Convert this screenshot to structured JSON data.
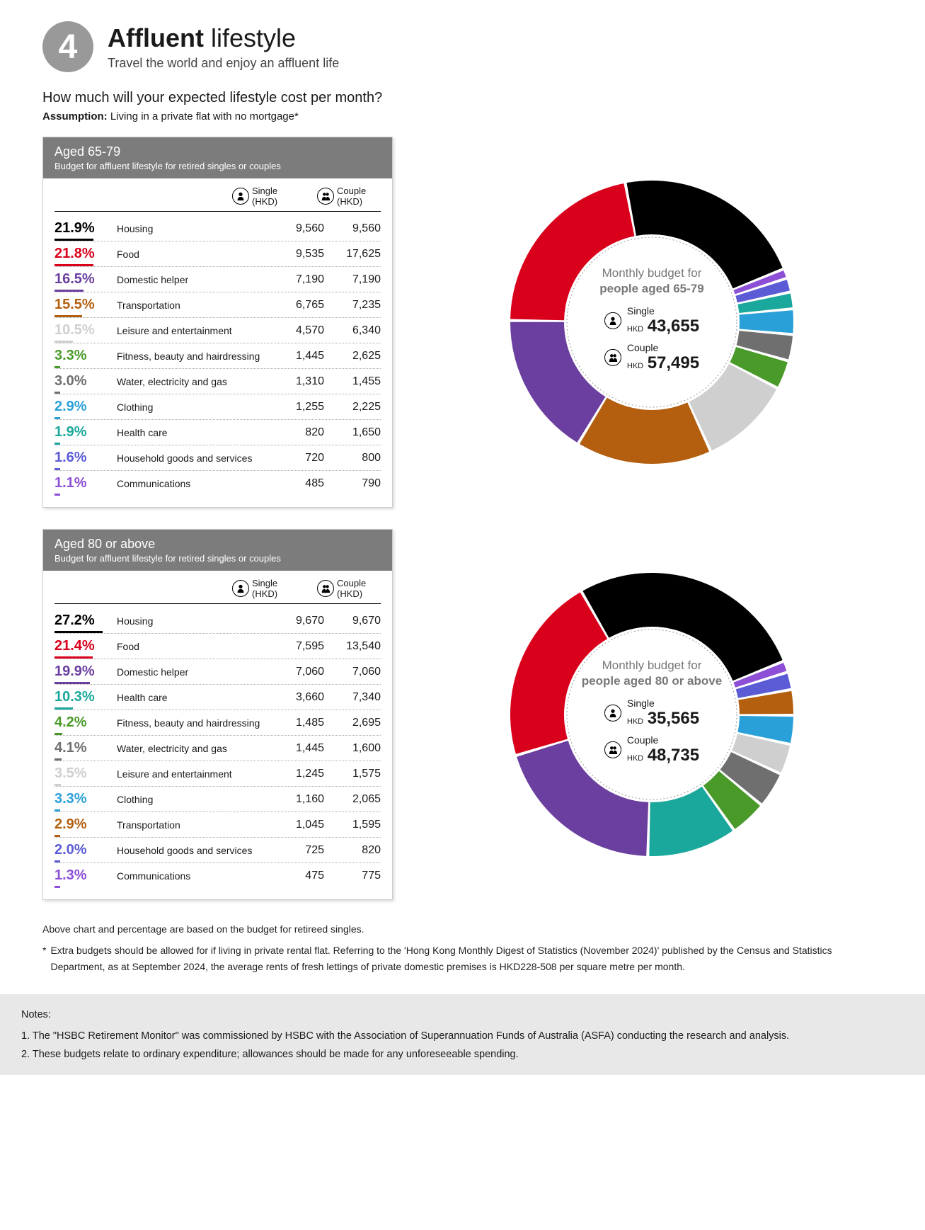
{
  "header": {
    "number": "4",
    "title_bold": "Affluent",
    "title_light": "lifestyle",
    "subtitle": "Travel the world and enjoy an affluent life"
  },
  "question": "How much will your expected lifestyle cost per month?",
  "assumption_label": "Assumption:",
  "assumption_text": "Living in a private flat with no mortgage*",
  "single_header": "Single (HKD)",
  "couple_header": "Couple (HKD)",
  "colors": {
    "housing": "#000000",
    "food": "#d9001b",
    "domestic": "#6b3fa0",
    "transport": "#b35f0f",
    "leisure": "#cfcfcf",
    "fitness": "#4a9a2a",
    "water": "#6f6f6f",
    "clothing": "#2aa0d8",
    "health": "#1aa89c",
    "household": "#5b5bd6",
    "comms": "#8c4fd6"
  },
  "tables": [
    {
      "age_title": "Aged 65-79",
      "age_sub": "Budget for affluent lifestyle for retired singles or couples",
      "donut_title_line1": "Monthly budget for",
      "donut_title_line2": "people aged 65-79",
      "single_total": "43,655",
      "couple_total": "57,495",
      "rows": [
        {
          "pct": "21.9%",
          "cat": "Housing",
          "single": "9,560",
          "couple": "9,560",
          "color": "#000000",
          "value": 21.9
        },
        {
          "pct": "21.8%",
          "cat": "Food",
          "single": "9,535",
          "couple": "17,625",
          "color": "#d9001b",
          "value": 21.8
        },
        {
          "pct": "16.5%",
          "cat": "Domestic helper",
          "single": "7,190",
          "couple": "7,190",
          "color": "#6b3fa0",
          "value": 16.5
        },
        {
          "pct": "15.5%",
          "cat": "Transportation",
          "single": "6,765",
          "couple": "7,235",
          "color": "#b35f0f",
          "value": 15.5
        },
        {
          "pct": "10.5%",
          "cat": "Leisure and entertainment",
          "single": "4,570",
          "couple": "6,340",
          "color": "#cfcfcf",
          "value": 10.5
        },
        {
          "pct": "3.3%",
          "cat": "Fitness, beauty and hairdressing",
          "single": "1,445",
          "couple": "2,625",
          "color": "#4a9a2a",
          "value": 3.3
        },
        {
          "pct": "3.0%",
          "cat": "Water, electricity and gas",
          "single": "1,310",
          "couple": "1,455",
          "color": "#6f6f6f",
          "value": 3.0
        },
        {
          "pct": "2.9%",
          "cat": "Clothing",
          "single": "1,255",
          "couple": "2,225",
          "color": "#2aa0d8",
          "value": 2.9
        },
        {
          "pct": "1.9%",
          "cat": "Health care",
          "single": "820",
          "couple": "1,650",
          "color": "#1aa89c",
          "value": 1.9
        },
        {
          "pct": "1.6%",
          "cat": "Household goods and services",
          "single": "720",
          "couple": "800",
          "color": "#5b5bd6",
          "value": 1.6
        },
        {
          "pct": "1.1%",
          "cat": "Communications",
          "single": "485",
          "couple": "790",
          "color": "#8c4fd6",
          "value": 1.1
        }
      ]
    },
    {
      "age_title": "Aged 80 or above",
      "age_sub": "Budget for affluent lifestyle for retired singles or couples",
      "donut_title_line1": "Monthly budget for",
      "donut_title_line2": "people aged 80 or above",
      "single_total": "35,565",
      "couple_total": "48,735",
      "rows": [
        {
          "pct": "27.2%",
          "cat": "Housing",
          "single": "9,670",
          "couple": "9,670",
          "color": "#000000",
          "value": 27.2
        },
        {
          "pct": "21.4%",
          "cat": "Food",
          "single": "7,595",
          "couple": "13,540",
          "color": "#d9001b",
          "value": 21.4
        },
        {
          "pct": "19.9%",
          "cat": "Domestic helper",
          "single": "7,060",
          "couple": "7,060",
          "color": "#6b3fa0",
          "value": 19.9
        },
        {
          "pct": "10.3%",
          "cat": "Health care",
          "single": "3,660",
          "couple": "7,340",
          "color": "#1aa89c",
          "value": 10.3
        },
        {
          "pct": "4.2%",
          "cat": "Fitness, beauty and hairdressing",
          "single": "1,485",
          "couple": "2,695",
          "color": "#4a9a2a",
          "value": 4.2
        },
        {
          "pct": "4.1%",
          "cat": "Water, electricity and gas",
          "single": "1,445",
          "couple": "1,600",
          "color": "#6f6f6f",
          "value": 4.1
        },
        {
          "pct": "3.5%",
          "cat": "Leisure and entertainment",
          "single": "1,245",
          "couple": "1,575",
          "color": "#cfcfcf",
          "value": 3.5
        },
        {
          "pct": "3.3%",
          "cat": "Clothing",
          "single": "1,160",
          "couple": "2,065",
          "color": "#2aa0d8",
          "value": 3.3
        },
        {
          "pct": "2.9%",
          "cat": "Transportation",
          "single": "1,045",
          "couple": "1,595",
          "color": "#b35f0f",
          "value": 2.9
        },
        {
          "pct": "2.0%",
          "cat": "Household goods and services",
          "single": "725",
          "couple": "820",
          "color": "#5b5bd6",
          "value": 2.0
        },
        {
          "pct": "1.3%",
          "cat": "Communications",
          "single": "475",
          "couple": "775",
          "color": "#8c4fd6",
          "value": 1.3
        }
      ]
    }
  ],
  "donut_style": {
    "outer_radius": 200,
    "inner_radius": 124,
    "gap_deg": 1.2,
    "start_angle_deg": -22,
    "direction": "counterclockwise",
    "center_circle_stroke": "#999",
    "center_circle_dash": "2,3"
  },
  "single_label": "Single",
  "couple_label": "Couple",
  "currency": "HKD",
  "footnote1": "Above chart and percentage are based on the budget for retireed singles.",
  "footnote2": "Extra budgets should be allowed for if living in private rental flat. Referring to the 'Hong Kong Monthly Digest of Statistics (November 2024)' published by the Census and Statistics Department, as at September 2024, the average rents of fresh lettings of private domestic premises is HKD228-508 per square metre per month.",
  "notes_title": "Notes:",
  "note1": "1. The \"HSBC Retirement Monitor\" was commissioned by HSBC with the Association of Superannuation Funds of Australia (ASFA) conducting the research and analysis.",
  "note2": "2. These budgets relate to ordinary expenditure; allowances should be made for any unforeseeable spending."
}
